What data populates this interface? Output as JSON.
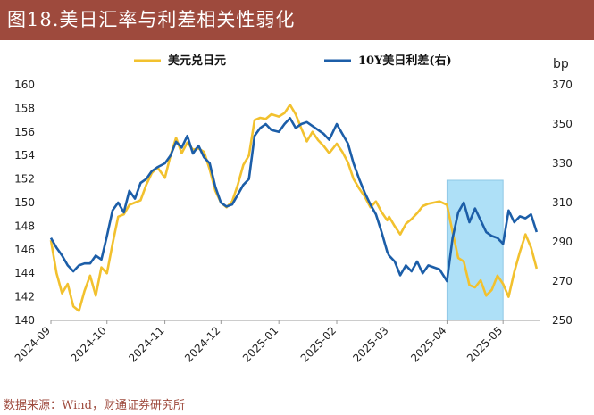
{
  "title": "图18.美日汇率与利差相关性弱化",
  "source": "数据来源：Wind，财通证券研究所",
  "chart_data": {
    "type": "line",
    "x_tick_labels": [
      "2024-09",
      "2024-10",
      "2024-11",
      "2024-12",
      "2025-01",
      "2025-02",
      "2025-03",
      "2025-04",
      "2025-05"
    ],
    "y_left": {
      "ticks": [
        140,
        142,
        144,
        146,
        148,
        150,
        152,
        154,
        156,
        158,
        160
      ],
      "ylim": [
        140,
        160
      ]
    },
    "y_right": {
      "unit": "bp",
      "ticks": [
        250,
        270,
        290,
        310,
        330,
        350,
        370
      ],
      "ylim": [
        250,
        370
      ]
    },
    "highlight": {
      "x_range": [
        "2025-04-01",
        "2025-05-01"
      ],
      "color": "#aee0f7"
    },
    "series": [
      {
        "name": "美元兑日元",
        "axis": "left",
        "color": "#f2c12e",
        "x": [
          "2024-09-01",
          "2024-09-04",
          "2024-09-07",
          "2024-09-10",
          "2024-09-13",
          "2024-09-16",
          "2024-09-19",
          "2024-09-22",
          "2024-09-25",
          "2024-09-28",
          "2024-10-01",
          "2024-10-04",
          "2024-10-07",
          "2024-10-10",
          "2024-10-13",
          "2024-10-16",
          "2024-10-19",
          "2024-10-22",
          "2024-10-25",
          "2024-10-28",
          "2024-11-01",
          "2024-11-04",
          "2024-11-07",
          "2024-11-10",
          "2024-11-13",
          "2024-11-16",
          "2024-11-19",
          "2024-11-22",
          "2024-11-25",
          "2024-11-28",
          "2024-12-01",
          "2024-12-04",
          "2024-12-07",
          "2024-12-10",
          "2024-12-13",
          "2024-12-16",
          "2024-12-19",
          "2024-12-22",
          "2024-12-25",
          "2024-12-28",
          "2025-01-01",
          "2025-01-04",
          "2025-01-07",
          "2025-01-10",
          "2025-01-13",
          "2025-01-16",
          "2025-01-19",
          "2025-01-22",
          "2025-01-25",
          "2025-01-28",
          "2025-02-01",
          "2025-02-04",
          "2025-02-07",
          "2025-02-10",
          "2025-02-13",
          "2025-02-16",
          "2025-02-19",
          "2025-02-22",
          "2025-02-25",
          "2025-02-28",
          "2025-03-01",
          "2025-03-04",
          "2025-03-07",
          "2025-03-10",
          "2025-03-13",
          "2025-03-16",
          "2025-03-19",
          "2025-03-22",
          "2025-03-25",
          "2025-03-28",
          "2025-04-01",
          "2025-04-04",
          "2025-04-07",
          "2025-04-10",
          "2025-04-13",
          "2025-04-16",
          "2025-04-19",
          "2025-04-22",
          "2025-04-25",
          "2025-04-28",
          "2025-05-01",
          "2025-05-04",
          "2025-05-07",
          "2025-05-10",
          "2025-05-13",
          "2025-05-16",
          "2025-05-19"
        ],
        "values": [
          146.8,
          144.0,
          142.3,
          143.1,
          141.2,
          140.8,
          142.5,
          143.8,
          142.1,
          144.5,
          144.0,
          146.5,
          148.8,
          149.0,
          149.8,
          150.0,
          150.2,
          151.5,
          152.5,
          153.0,
          152.1,
          154.0,
          155.5,
          154.2,
          155.1,
          154.5,
          154.6,
          154.3,
          152.8,
          151.0,
          150.0,
          149.6,
          150.1,
          151.5,
          153.2,
          154.0,
          157.0,
          157.2,
          157.1,
          157.5,
          157.3,
          157.6,
          158.3,
          157.5,
          156.3,
          155.2,
          156.0,
          155.3,
          154.8,
          154.2,
          155.0,
          154.3,
          153.4,
          152.0,
          151.2,
          150.5,
          149.6,
          150.1,
          149.2,
          148.5,
          148.8,
          148.0,
          147.3,
          148.2,
          148.6,
          149.1,
          149.7,
          149.9,
          150.0,
          150.1,
          149.8,
          147.5,
          145.3,
          145.0,
          143.0,
          142.8,
          143.4,
          142.1,
          142.6,
          143.8,
          143.1,
          142.0,
          144.1,
          145.8,
          147.3,
          146.2,
          144.4
        ]
      },
      {
        "name": "10Y美日利差(右)",
        "axis": "right",
        "color": "#1c5ea8",
        "x": [
          "2024-09-01",
          "2024-09-04",
          "2024-09-07",
          "2024-09-10",
          "2024-09-13",
          "2024-09-16",
          "2024-09-19",
          "2024-09-22",
          "2024-09-25",
          "2024-09-28",
          "2024-10-01",
          "2024-10-04",
          "2024-10-07",
          "2024-10-10",
          "2024-10-13",
          "2024-10-16",
          "2024-10-19",
          "2024-10-22",
          "2024-10-25",
          "2024-10-28",
          "2024-11-01",
          "2024-11-04",
          "2024-11-07",
          "2024-11-10",
          "2024-11-13",
          "2024-11-16",
          "2024-11-19",
          "2024-11-22",
          "2024-11-25",
          "2024-11-28",
          "2024-12-01",
          "2024-12-04",
          "2024-12-07",
          "2024-12-10",
          "2024-12-13",
          "2024-12-16",
          "2024-12-19",
          "2024-12-22",
          "2024-12-25",
          "2024-12-28",
          "2025-01-01",
          "2025-01-04",
          "2025-01-07",
          "2025-01-10",
          "2025-01-13",
          "2025-01-16",
          "2025-01-19",
          "2025-01-22",
          "2025-01-25",
          "2025-01-28",
          "2025-02-01",
          "2025-02-04",
          "2025-02-07",
          "2025-02-10",
          "2025-02-13",
          "2025-02-16",
          "2025-02-19",
          "2025-02-22",
          "2025-02-25",
          "2025-02-28",
          "2025-03-01",
          "2025-03-04",
          "2025-03-07",
          "2025-03-10",
          "2025-03-13",
          "2025-03-16",
          "2025-03-19",
          "2025-03-22",
          "2025-03-25",
          "2025-03-28",
          "2025-04-01",
          "2025-04-04",
          "2025-04-07",
          "2025-04-10",
          "2025-04-13",
          "2025-04-16",
          "2025-04-19",
          "2025-04-22",
          "2025-04-25",
          "2025-04-28",
          "2025-05-01",
          "2025-05-04",
          "2025-05-07",
          "2025-05-10",
          "2025-05-13",
          "2025-05-16",
          "2025-05-19"
        ],
        "values": [
          292,
          287,
          283,
          278,
          275,
          278,
          279,
          279,
          283,
          281,
          293,
          306,
          310,
          305,
          316,
          312,
          320,
          322,
          326,
          328,
          330,
          334,
          341,
          338,
          344,
          335,
          339,
          333,
          330,
          318,
          310,
          308,
          309,
          314,
          319,
          322,
          344,
          348,
          350,
          347,
          346,
          350,
          353,
          348,
          350,
          351,
          349,
          347,
          345,
          342,
          350,
          345,
          340,
          330,
          322,
          315,
          309,
          304,
          295,
          285,
          283,
          280,
          273,
          278,
          275,
          280,
          274,
          278,
          277,
          276,
          270,
          292,
          305,
          310,
          300,
          307,
          301,
          295,
          293,
          292,
          289,
          306,
          300,
          303,
          302,
          304,
          295
        ]
      }
    ]
  }
}
